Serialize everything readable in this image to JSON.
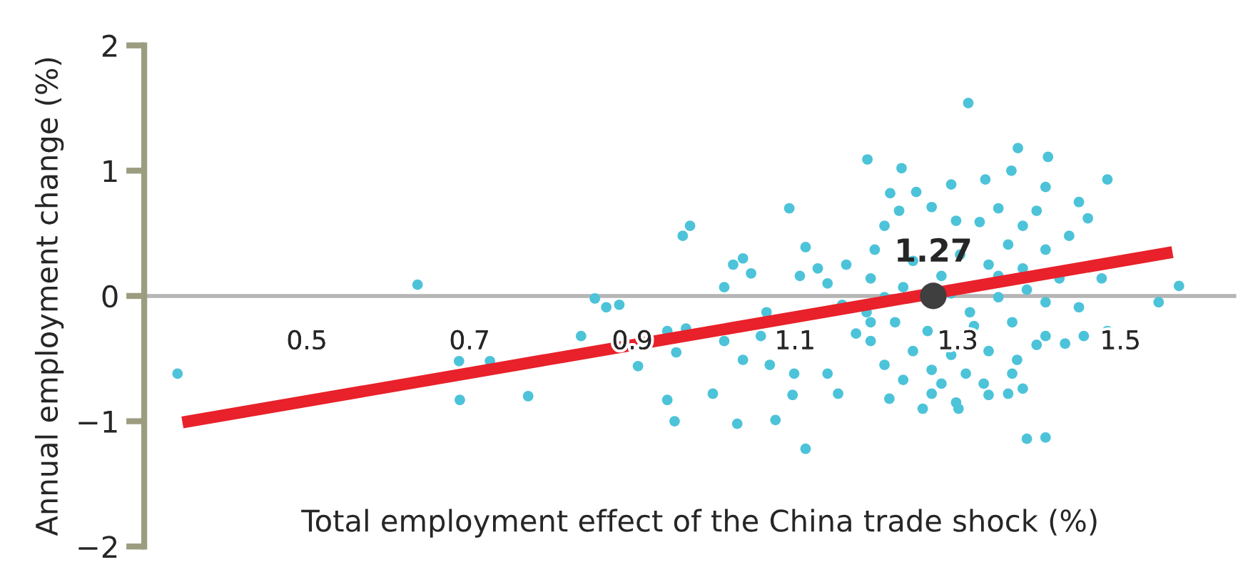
{
  "chart_data": {
    "type": "scatter",
    "xlabel": "Total employment effect of the China trade shock (%)",
    "ylabel": "Annual employment change (%)",
    "xlim": [
      0.3,
      1.64
    ],
    "xticks": [
      0.5,
      0.7,
      0.9,
      1.1,
      1.3,
      1.5
    ],
    "ylim": [
      -2,
      2
    ],
    "yticks": [
      -2,
      -1,
      0,
      1,
      2
    ],
    "grid": false,
    "legend": false,
    "marker": "circle",
    "annotations": [
      {
        "text": "1.27",
        "x": 1.27,
        "y": 0
      }
    ],
    "series": [
      {
        "color": "#4cc3d9",
        "x": [
          0.341,
          0.636,
          0.687,
          0.688,
          0.772,
          0.725,
          1.189,
          0.971,
          0.962,
          1.093,
          1.113,
          1.046,
          0.854,
          0.884,
          0.868,
          0.837,
          0.907,
          0.954,
          0.943,
          0.952,
          1.029,
          0.999,
          1.076,
          1.097,
          1.113,
          1.099,
          1.069,
          1.036,
          1.013,
          1.013,
          1.024,
          1.036,
          0.943,
          0.966,
          1.058,
          1.065,
          1.128,
          1.14,
          1.163,
          1.14,
          1.153,
          1.313,
          1.374,
          1.411,
          1.484,
          1.231,
          1.292,
          1.334,
          1.366,
          1.217,
          1.249,
          1.408,
          1.449,
          1.228,
          1.268,
          1.35,
          1.397,
          1.46,
          1.298,
          1.327,
          1.38,
          1.437,
          1.21,
          1.198,
          1.362,
          1.408,
          1.303,
          1.338,
          1.38,
          1.425,
          1.477,
          1.572,
          1.547,
          1.193,
          1.233,
          1.292,
          1.35,
          1.408,
          1.449,
          1.484,
          1.455,
          1.188,
          1.223,
          1.263,
          1.32,
          1.367,
          1.408,
          1.432,
          1.193,
          1.245,
          1.292,
          1.338,
          1.373,
          1.397,
          1.21,
          1.268,
          1.31,
          1.367,
          1.233,
          1.28,
          1.332,
          1.38,
          1.216,
          1.268,
          1.298,
          1.338,
          1.362,
          1.257,
          1.301,
          1.385,
          1.408,
          1.193,
          1.21,
          1.106,
          1.158,
          1.175,
          1.245,
          1.28,
          1.35,
          1.385,
          1.315
        ],
        "values": [
          -0.62,
          0.09,
          -0.52,
          -0.83,
          -0.8,
          -0.52,
          1.09,
          0.56,
          0.48,
          0.7,
          0.39,
          0.18,
          -0.02,
          -0.07,
          -0.09,
          -0.32,
          -0.56,
          -0.45,
          -0.83,
          -1.0,
          -1.02,
          -0.78,
          -0.99,
          -0.79,
          -1.22,
          -0.62,
          -0.55,
          -0.51,
          -0.36,
          0.07,
          0.25,
          0.3,
          -0.28,
          -0.26,
          -0.32,
          -0.13,
          0.22,
          0.1,
          0.25,
          -0.62,
          -0.78,
          1.54,
          1.18,
          1.11,
          0.93,
          1.02,
          0.89,
          0.93,
          1.0,
          0.82,
          0.83,
          0.87,
          0.75,
          0.68,
          0.71,
          0.7,
          0.68,
          0.62,
          0.6,
          0.59,
          0.56,
          0.48,
          0.56,
          0.37,
          0.41,
          0.37,
          0.33,
          0.25,
          0.22,
          0.14,
          0.14,
          0.08,
          -0.05,
          0.14,
          0.07,
          0.02,
          -0.01,
          -0.05,
          -0.09,
          -0.28,
          -0.32,
          -0.13,
          -0.21,
          -0.28,
          -0.24,
          -0.21,
          -0.32,
          -0.38,
          -0.36,
          -0.44,
          -0.47,
          -0.44,
          -0.51,
          -0.39,
          -0.55,
          -0.59,
          -0.62,
          -0.62,
          -0.67,
          -0.7,
          -0.7,
          -0.74,
          -0.82,
          -0.78,
          -0.85,
          -0.79,
          -0.78,
          -0.9,
          -0.9,
          -1.14,
          -1.13,
          -0.21,
          -0.01,
          0.16,
          -0.07,
          -0.3,
          0.28,
          0.16,
          0.16,
          0.05,
          -0.13
        ]
      },
      {
        "type": "line",
        "marker": "none",
        "color": "#e8212a",
        "x": [
          0.347,
          1.564
        ],
        "values": [
          -1.01,
          0.35
        ]
      },
      {
        "color": "#3f3f3f",
        "x": [
          1.27
        ],
        "values": [
          0
        ]
      }
    ]
  }
}
